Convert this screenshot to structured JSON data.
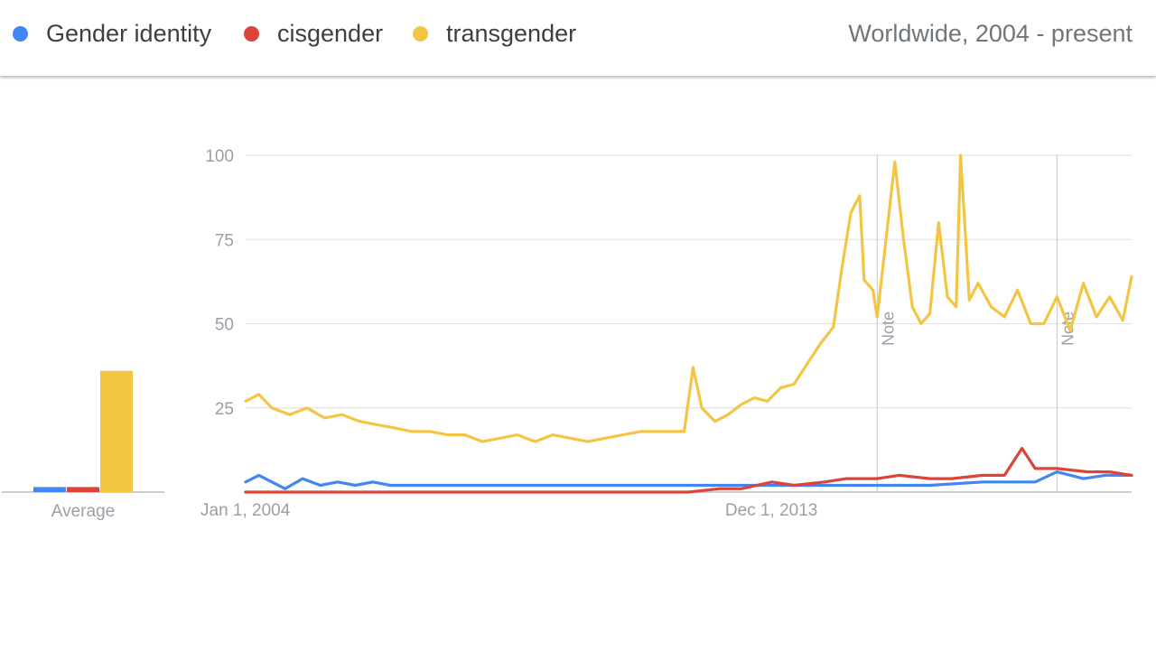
{
  "header": {
    "legend": [
      {
        "label": "Gender identity",
        "color": "#4285f4"
      },
      {
        "label": "cisgender",
        "color": "#db4437"
      },
      {
        "label": "transgender",
        "color": "#f4c542"
      }
    ],
    "region": "Worldwide, 2004 - present"
  },
  "chart_data": [
    {
      "type": "bar",
      "categories": [
        "Average"
      ],
      "series": [
        {
          "name": "Gender identity",
          "values": [
            1.5
          ]
        },
        {
          "name": "cisgender",
          "values": [
            1.5
          ]
        },
        {
          "name": "transgender",
          "values": [
            36
          ]
        }
      ],
      "ylim": [
        0,
        100
      ],
      "colors": [
        "#4285f4",
        "#db4437",
        "#f4c542"
      ]
    },
    {
      "type": "line",
      "ylim": [
        0,
        100
      ],
      "yticks": [
        "100",
        "75",
        "50",
        "25"
      ],
      "ytick_values": [
        100,
        75,
        50,
        25
      ],
      "xticks": [
        "Jan 1, 2004",
        "Dec 1, 2013"
      ],
      "xtick_values": [
        "2004-01",
        "2013-12"
      ],
      "xlim": [
        "2004-01",
        "2020-11"
      ],
      "grid": true,
      "notes": [
        {
          "x": "2016-01",
          "label": "Note"
        },
        {
          "x": "2019-06",
          "label": "Note"
        }
      ],
      "colors": [
        "#4285f4",
        "#db4437",
        "#f4c542"
      ],
      "series": [
        {
          "name": "Gender identity",
          "points": [
            [
              "2004-01",
              3
            ],
            [
              "2004-04",
              5
            ],
            [
              "2004-07",
              3
            ],
            [
              "2004-10",
              1
            ],
            [
              "2005-02",
              4
            ],
            [
              "2005-06",
              2
            ],
            [
              "2005-10",
              3
            ],
            [
              "2006-02",
              2
            ],
            [
              "2006-06",
              3
            ],
            [
              "2006-10",
              2
            ],
            [
              "2007-03",
              2
            ],
            [
              "2008-01",
              2
            ],
            [
              "2009-01",
              2
            ],
            [
              "2010-01",
              2
            ],
            [
              "2011-01",
              2
            ],
            [
              "2012-01",
              2
            ],
            [
              "2013-01",
              2
            ],
            [
              "2014-01",
              2
            ],
            [
              "2015-01",
              2
            ],
            [
              "2016-01",
              2
            ],
            [
              "2017-01",
              2
            ],
            [
              "2018-01",
              3
            ],
            [
              "2019-01",
              3
            ],
            [
              "2019-06",
              6
            ],
            [
              "2019-12",
              4
            ],
            [
              "2020-05",
              5
            ],
            [
              "2020-11",
              5
            ]
          ]
        },
        {
          "name": "cisgender",
          "points": [
            [
              "2004-01",
              0
            ],
            [
              "2012-06",
              0
            ],
            [
              "2013-01",
              1
            ],
            [
              "2013-06",
              1
            ],
            [
              "2014-01",
              3
            ],
            [
              "2014-06",
              2
            ],
            [
              "2015-01",
              3
            ],
            [
              "2015-06",
              4
            ],
            [
              "2016-01",
              4
            ],
            [
              "2016-06",
              5
            ],
            [
              "2017-01",
              4
            ],
            [
              "2017-06",
              4
            ],
            [
              "2018-01",
              5
            ],
            [
              "2018-06",
              5
            ],
            [
              "2018-10",
              13
            ],
            [
              "2019-01",
              7
            ],
            [
              "2019-06",
              7
            ],
            [
              "2020-01",
              6
            ],
            [
              "2020-06",
              6
            ],
            [
              "2020-11",
              5
            ]
          ]
        },
        {
          "name": "transgender",
          "points": [
            [
              "2004-01",
              27
            ],
            [
              "2004-04",
              29
            ],
            [
              "2004-07",
              25
            ],
            [
              "2004-11",
              23
            ],
            [
              "2005-03",
              25
            ],
            [
              "2005-07",
              22
            ],
            [
              "2005-11",
              23
            ],
            [
              "2006-03",
              21
            ],
            [
              "2006-07",
              20
            ],
            [
              "2006-11",
              19
            ],
            [
              "2007-03",
              18
            ],
            [
              "2007-07",
              18
            ],
            [
              "2007-11",
              17
            ],
            [
              "2008-03",
              17
            ],
            [
              "2008-07",
              15
            ],
            [
              "2008-11",
              16
            ],
            [
              "2009-03",
              17
            ],
            [
              "2009-07",
              15
            ],
            [
              "2009-11",
              17
            ],
            [
              "2010-03",
              16
            ],
            [
              "2010-07",
              15
            ],
            [
              "2010-11",
              16
            ],
            [
              "2011-03",
              17
            ],
            [
              "2011-07",
              18
            ],
            [
              "2011-11",
              18
            ],
            [
              "2012-02",
              18
            ],
            [
              "2012-05",
              18
            ],
            [
              "2012-07",
              37
            ],
            [
              "2012-09",
              25
            ],
            [
              "2012-12",
              21
            ],
            [
              "2013-03",
              23
            ],
            [
              "2013-06",
              26
            ],
            [
              "2013-09",
              28
            ],
            [
              "2013-12",
              27
            ],
            [
              "2014-03",
              31
            ],
            [
              "2014-06",
              32
            ],
            [
              "2014-09",
              38
            ],
            [
              "2014-12",
              44
            ],
            [
              "2015-03",
              49
            ],
            [
              "2015-05",
              67
            ],
            [
              "2015-07",
              83
            ],
            [
              "2015-09",
              88
            ],
            [
              "2015-10",
              63
            ],
            [
              "2015-12",
              60
            ],
            [
              "2016-01",
              52
            ],
            [
              "2016-03",
              75
            ],
            [
              "2016-05",
              98
            ],
            [
              "2016-07",
              75
            ],
            [
              "2016-09",
              55
            ],
            [
              "2016-11",
              50
            ],
            [
              "2017-01",
              53
            ],
            [
              "2017-03",
              80
            ],
            [
              "2017-05",
              58
            ],
            [
              "2017-07",
              55
            ],
            [
              "2017-08",
              100
            ],
            [
              "2017-10",
              57
            ],
            [
              "2017-12",
              62
            ],
            [
              "2018-03",
              55
            ],
            [
              "2018-06",
              52
            ],
            [
              "2018-09",
              60
            ],
            [
              "2018-12",
              50
            ],
            [
              "2019-03",
              50
            ],
            [
              "2019-06",
              58
            ],
            [
              "2019-09",
              48
            ],
            [
              "2019-12",
              62
            ],
            [
              "2020-03",
              52
            ],
            [
              "2020-06",
              58
            ],
            [
              "2020-09",
              51
            ],
            [
              "2020-11",
              64
            ]
          ]
        }
      ]
    }
  ]
}
